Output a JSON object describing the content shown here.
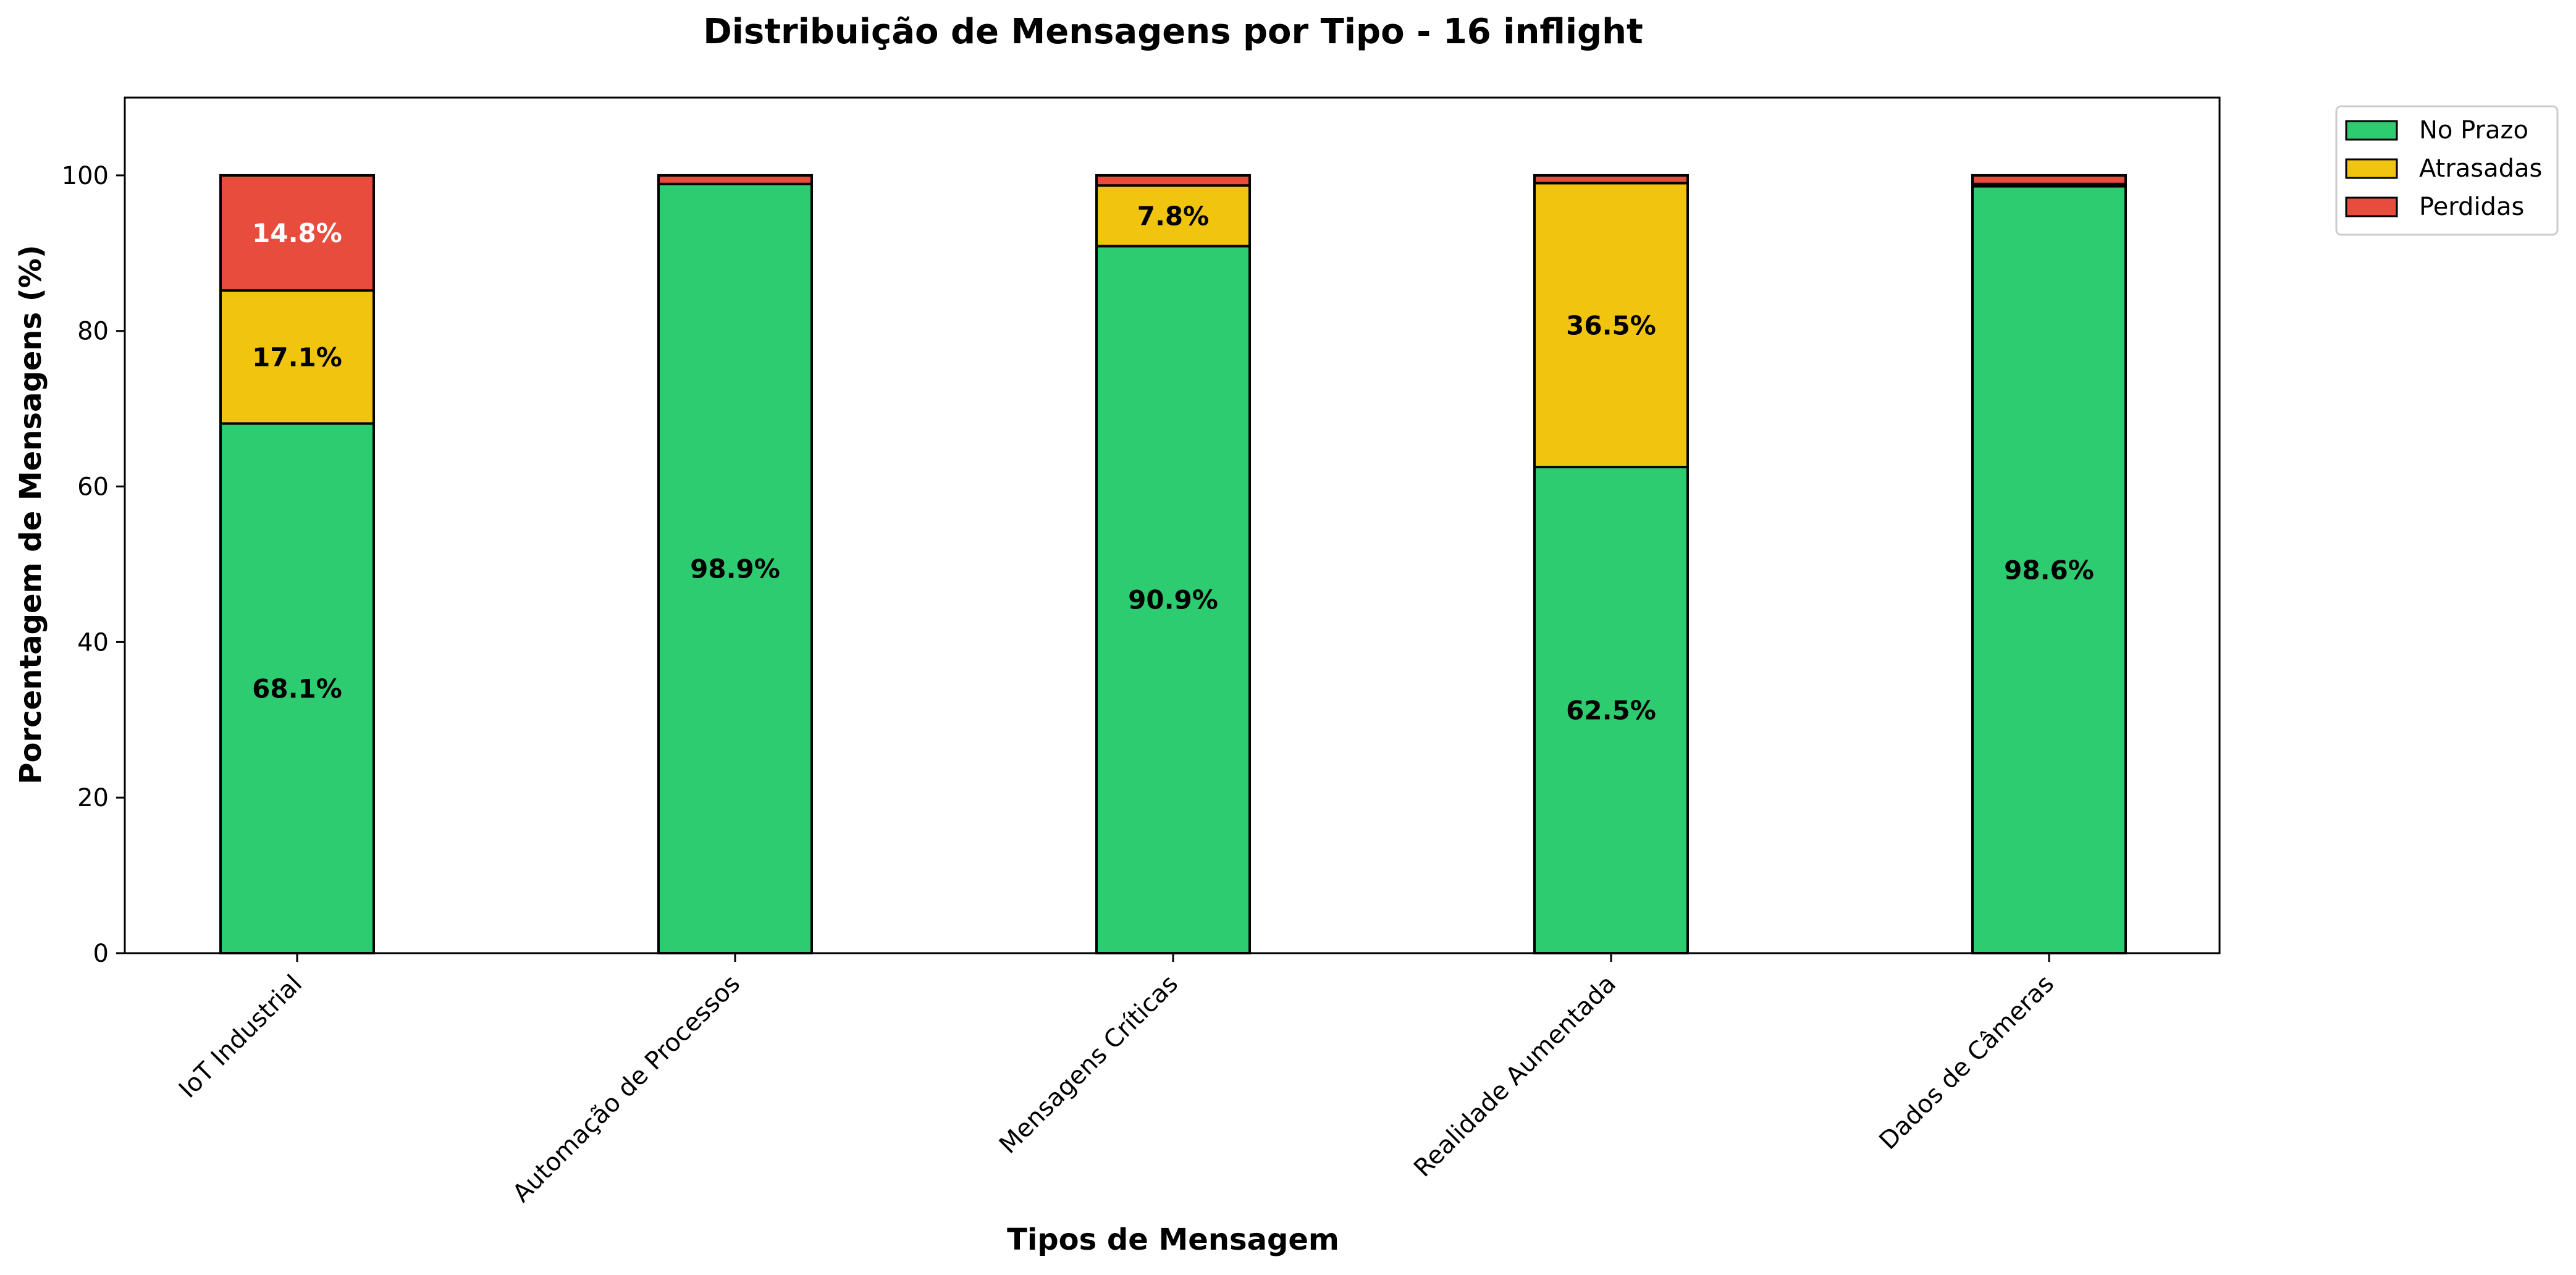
{
  "chart_data": {
    "type": "bar",
    "stacked": true,
    "title": "Distribuição de Mensagens por Tipo - 16 inflight",
    "xlabel": "Tipos de Mensagem",
    "ylabel": "Porcentagem de Mensagens (%)",
    "ylim": [
      0,
      110
    ],
    "yticks": [
      0,
      20,
      40,
      60,
      80,
      100
    ],
    "grid": false,
    "legend_position": "outside-top-right",
    "categories": [
      "IoT Industrial",
      "Automação de Processos",
      "Mensagens Críticas",
      "Realidade Aumentada",
      "Dados de Câmeras"
    ],
    "series": [
      {
        "name": "No Prazo",
        "color": "#2ecc71",
        "values": [
          68.1,
          98.9,
          90.9,
          62.5,
          98.6
        ],
        "labels": [
          "68.1%",
          "98.9%",
          "90.9%",
          "62.5%",
          "98.6%"
        ],
        "label_color": "#000000"
      },
      {
        "name": "Atrasadas",
        "color": "#f1c40f",
        "values": [
          17.1,
          0.0,
          7.8,
          36.5,
          0.3
        ],
        "labels": [
          "17.1%",
          "",
          "7.8%",
          "36.5%",
          ""
        ],
        "label_color": "#000000"
      },
      {
        "name": "Perdidas",
        "color": "#e74c3c",
        "values": [
          14.8,
          1.1,
          1.3,
          1.0,
          1.1
        ],
        "labels": [
          "14.8%",
          "",
          "",
          "",
          ""
        ],
        "label_color": "#ffffff"
      }
    ]
  }
}
